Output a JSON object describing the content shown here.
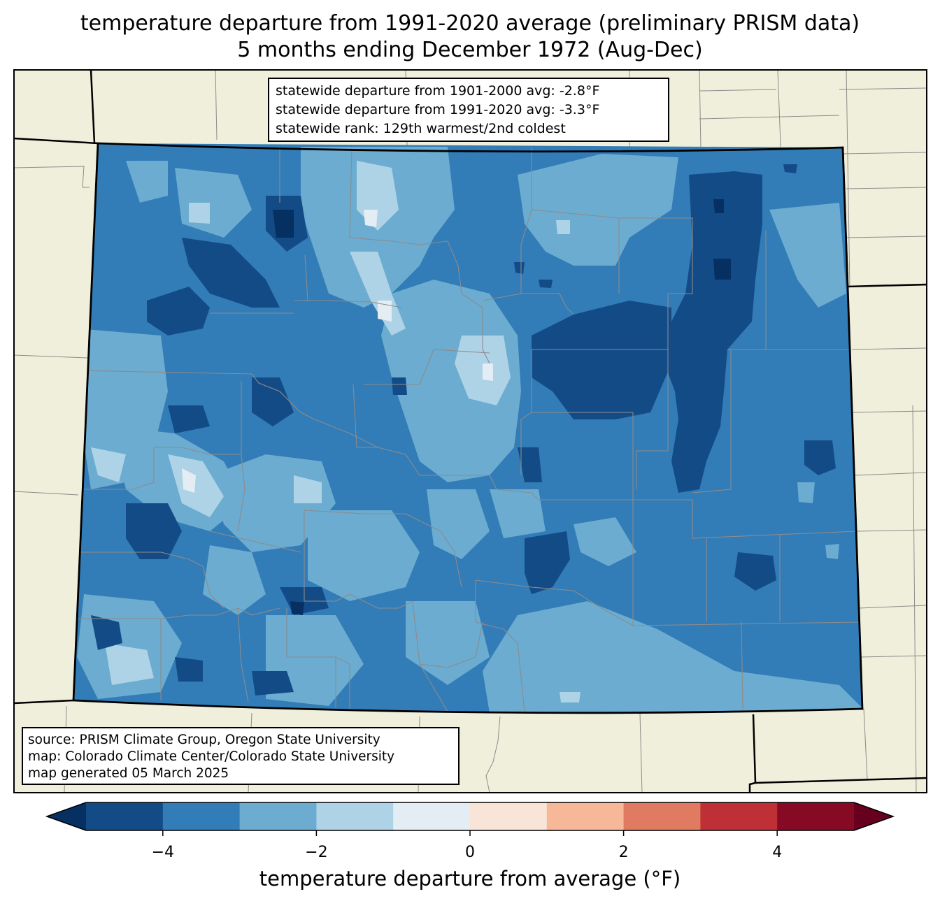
{
  "title": {
    "line1": "temperature departure from 1991-2020 average (preliminary PRISM data)",
    "line2": "5 months ending December 1972 (Aug-Dec)"
  },
  "stats_box": {
    "line1": "statewide departure from 1901-2000 avg: -2.8°F",
    "line2": "statewide departure from 1991-2020 avg: -3.3°F",
    "line3": "statewide rank: 129th warmest/2nd coldest"
  },
  "source_box": {
    "line1": "source: PRISM Climate Group, Oregon State University",
    "line2": "map: Colorado Climate Center/Colorado State University",
    "line3": "map generated 05 March 2025"
  },
  "colorbar": {
    "label": "temperature departure from average (°F)",
    "min": -5,
    "max": 5,
    "step": 1,
    "extend": "both",
    "ticks": [
      {
        "value": -4,
        "label": "−4"
      },
      {
        "value": -2,
        "label": "−2"
      },
      {
        "value": 0,
        "label": "0"
      },
      {
        "value": 2,
        "label": "2"
      },
      {
        "value": 4,
        "label": "4"
      }
    ],
    "colors": [
      "#053061",
      "#134b87",
      "#327cb7",
      "#6bacd0",
      "#aed3e6",
      "#e3edf3",
      "#f9e4d8",
      "#f7b799",
      "#e07b62",
      "#be3036",
      "#870a24",
      "#67001f"
    ]
  },
  "map_colors": {
    "background": "#efefdb",
    "state_fill_base": "#327cb7"
  }
}
